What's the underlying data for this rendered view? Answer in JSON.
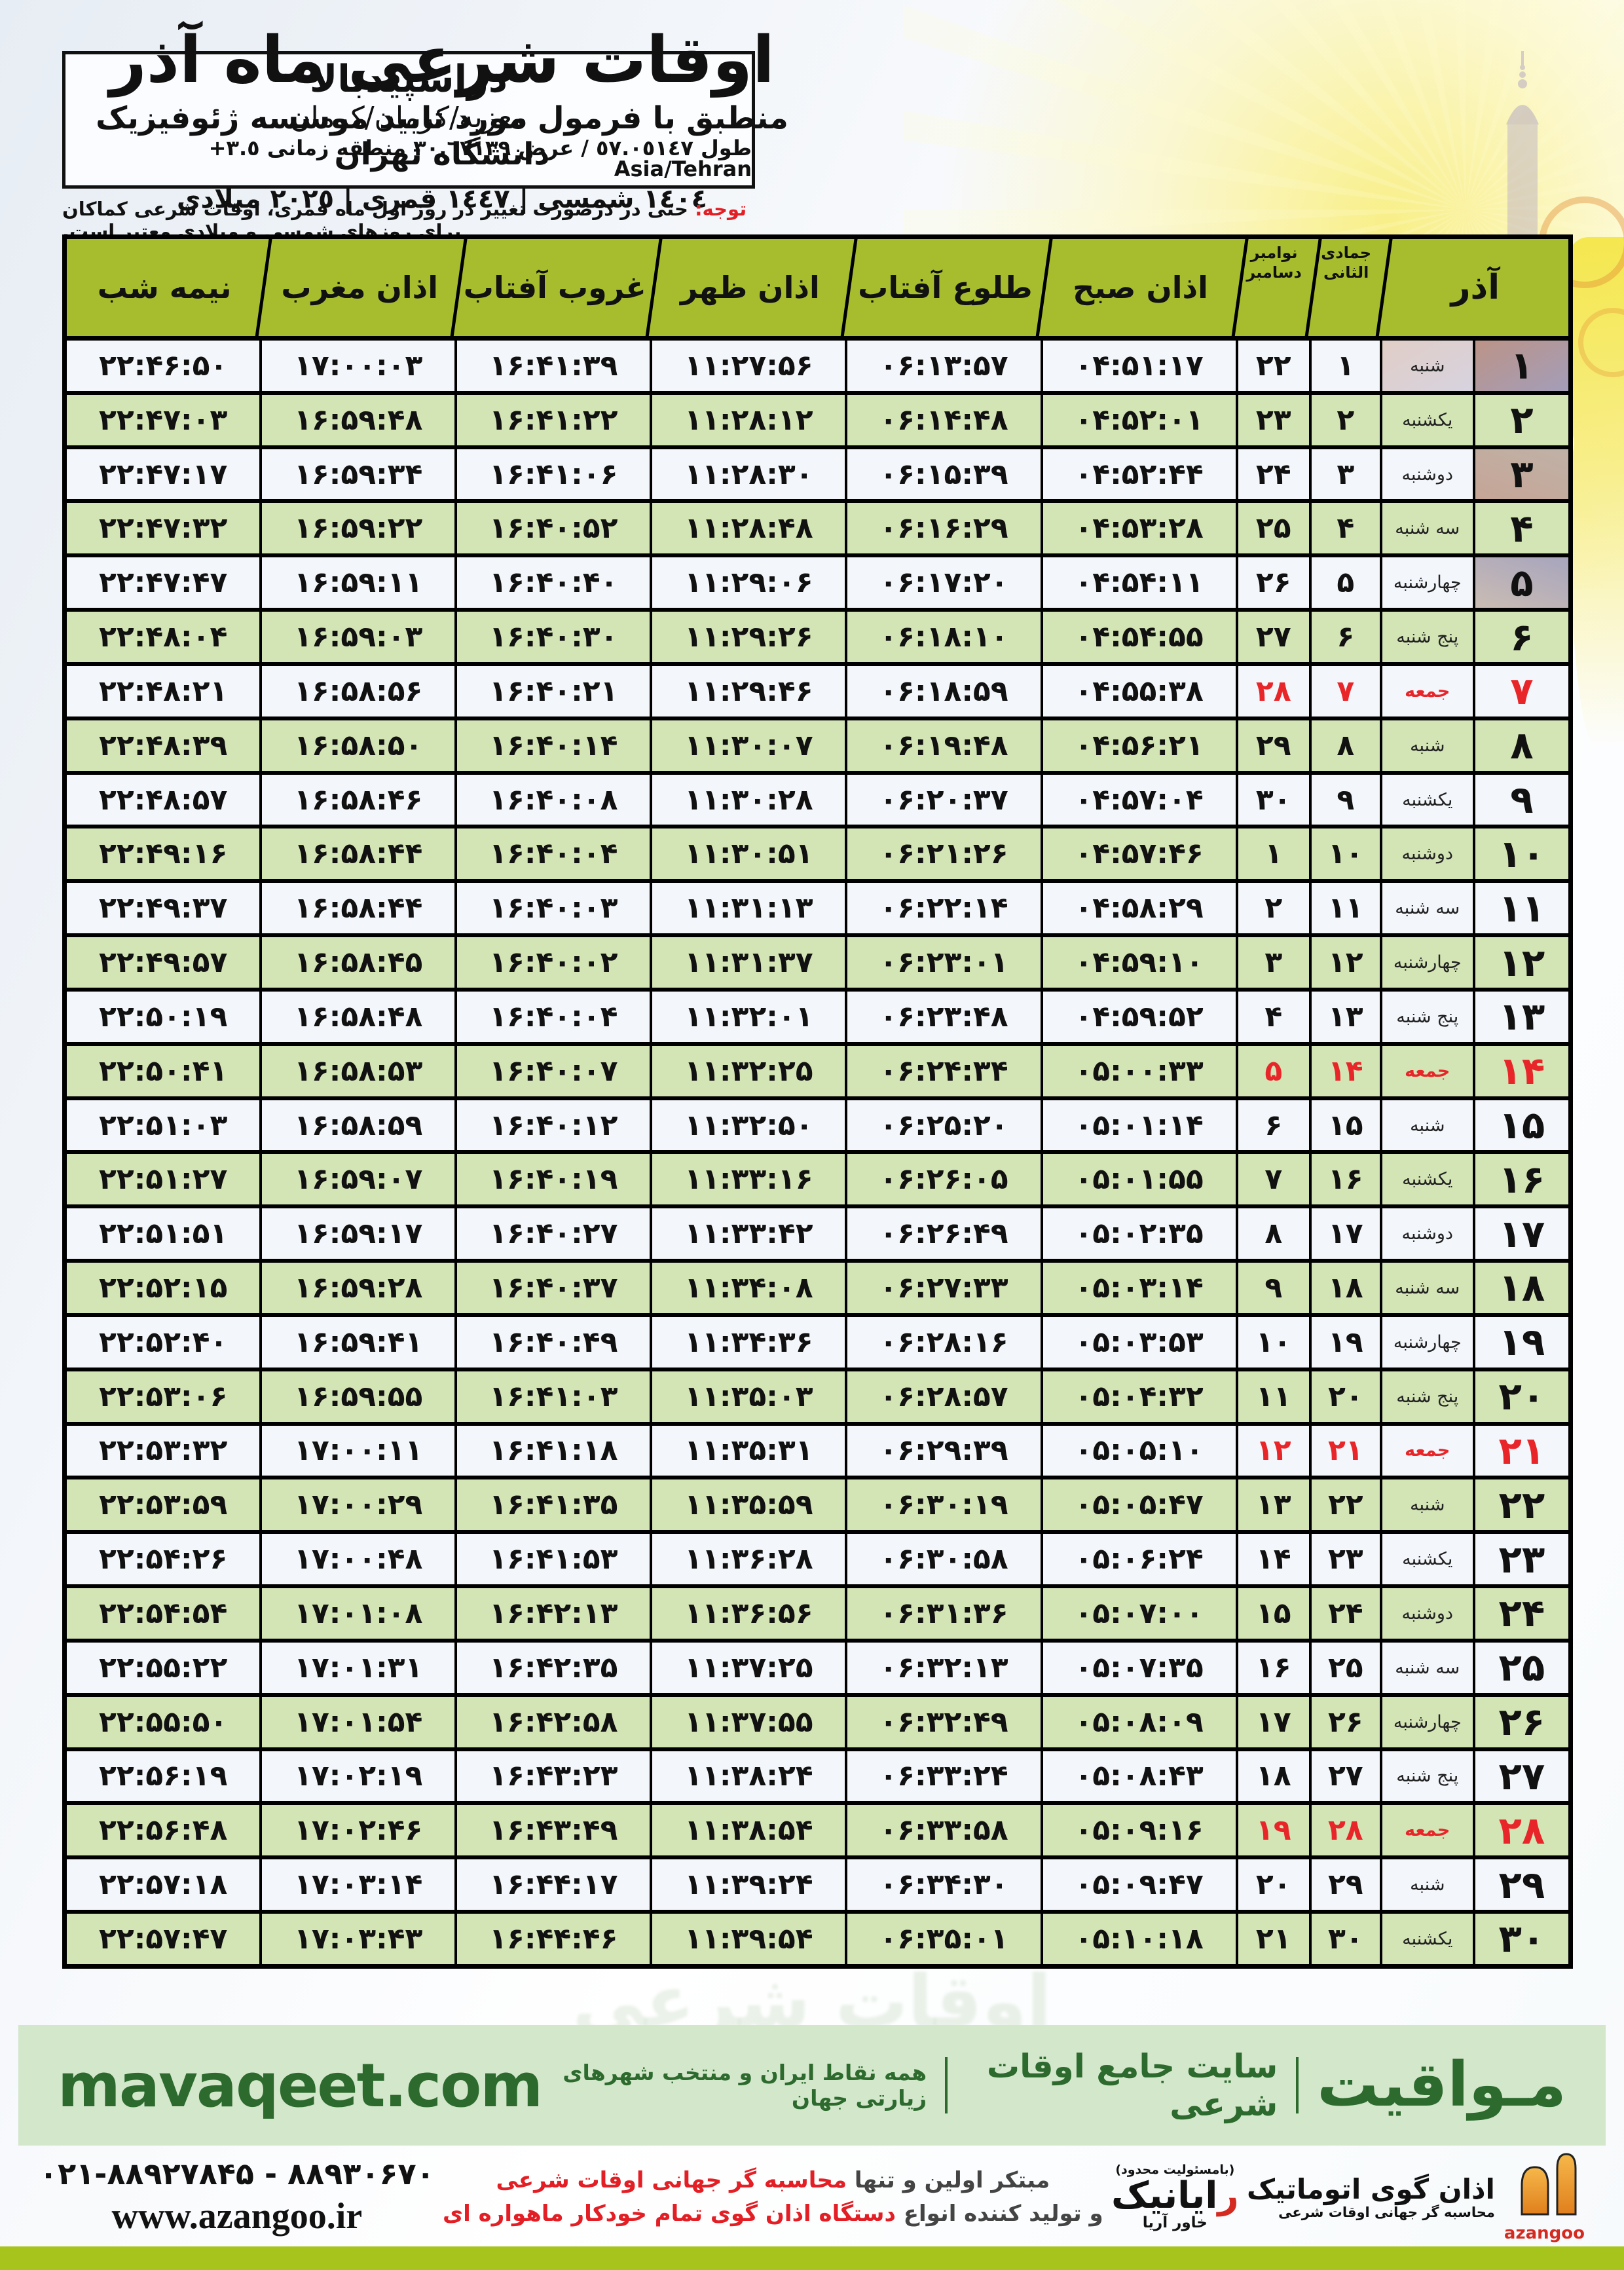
{
  "colors": {
    "header_green": "#a7bd2e",
    "row_green": "#d3e4b5",
    "row_white": "#f3f6fb",
    "friday_red": "#e8262a",
    "note_red": "#e31e24",
    "mavaqeet_green": "#2d6a2e",
    "footer_bar_green": "#d3e7cb",
    "lime_bar": "#a6c41c"
  },
  "header": {
    "title": "اوقات شرعی ماه آذر",
    "subtitle": "منطبق با فرمول مورد تایید موسسه ژئوفیزیک دانشگاه تهران",
    "dates": "١٤٠٤ شمسی | ١٤٤٧ قمری | ٢٠٢٥ میلادی"
  },
  "location": {
    "name": "دراسپیدبالا",
    "region": "معزیه/کرمان/کرمان",
    "coords": "طول ٥٧.٠٥١٤٧ / عرض ٣٠.٦٧١٣٩ منطقه زمانی ٣.٥+",
    "timezone": "Asia/Tehran"
  },
  "note": {
    "label": "توجه:",
    "text": " حتی در درصورت تغییر در روز اول ماه قمری، اوقات شرعی کماکان برای روزهای شمسی و میلادی معتبر است."
  },
  "table": {
    "headers": {
      "azar": "آذر",
      "jumada": "جمادی الثانی",
      "november": "نوامبر",
      "december": "دسامبر",
      "fajr": "اذان صبح",
      "sunrise": "طلوع آفتاب",
      "noon": "اذان ظهر",
      "sunset": "غروب آفتاب",
      "maghrib": "اذان مغرب",
      "midnight": "نیمه شب"
    },
    "row_order_rtl": [
      "azar_day",
      "weekday",
      "jumada_day",
      "gregorian_day",
      "fajr",
      "sunrise",
      "noon",
      "sunset",
      "maghrib",
      "midnight",
      "is_friday"
    ],
    "rows": [
      [
        1,
        "شنبه",
        1,
        22,
        "04:51:17",
        "06:13:57",
        "11:27:56",
        "16:41:39",
        "17:00:03",
        "22:46:50",
        0
      ],
      [
        2,
        "یکشنبه",
        2,
        23,
        "04:52:01",
        "06:14:48",
        "11:28:12",
        "16:41:22",
        "16:59:48",
        "22:47:03",
        0
      ],
      [
        3,
        "دوشنبه",
        3,
        24,
        "04:52:44",
        "06:15:39",
        "11:28:30",
        "16:41:06",
        "16:59:34",
        "22:47:17",
        0
      ],
      [
        4,
        "سه شنبه",
        4,
        25,
        "04:53:28",
        "06:16:29",
        "11:28:48",
        "16:40:52",
        "16:59:22",
        "22:47:32",
        0
      ],
      [
        5,
        "چهارشنبه",
        5,
        26,
        "04:54:11",
        "06:17:20",
        "11:29:06",
        "16:40:40",
        "16:59:11",
        "22:47:47",
        0
      ],
      [
        6,
        "پنج شنبه",
        6,
        27,
        "04:54:55",
        "06:18:10",
        "11:29:26",
        "16:40:30",
        "16:59:03",
        "22:48:04",
        0
      ],
      [
        7,
        "جمعه",
        7,
        28,
        "04:55:38",
        "06:18:59",
        "11:29:46",
        "16:40:21",
        "16:58:56",
        "22:48:21",
        1
      ],
      [
        8,
        "شنبه",
        8,
        29,
        "04:56:21",
        "06:19:48",
        "11:30:07",
        "16:40:14",
        "16:58:50",
        "22:48:39",
        0
      ],
      [
        9,
        "یکشنبه",
        9,
        30,
        "04:57:04",
        "06:20:37",
        "11:30:28",
        "16:40:08",
        "16:58:46",
        "22:48:57",
        0
      ],
      [
        10,
        "دوشنبه",
        10,
        1,
        "04:57:46",
        "06:21:26",
        "11:30:51",
        "16:40:04",
        "16:58:44",
        "22:49:16",
        0
      ],
      [
        11,
        "سه شنبه",
        11,
        2,
        "04:58:29",
        "06:22:14",
        "11:31:13",
        "16:40:03",
        "16:58:44",
        "22:49:37",
        0
      ],
      [
        12,
        "چهارشنبه",
        12,
        3,
        "04:59:10",
        "06:23:01",
        "11:31:37",
        "16:40:02",
        "16:58:45",
        "22:49:57",
        0
      ],
      [
        13,
        "پنج شنبه",
        13,
        4,
        "04:59:52",
        "06:23:48",
        "11:32:01",
        "16:40:04",
        "16:58:48",
        "22:50:19",
        0
      ],
      [
        14,
        "جمعه",
        14,
        5,
        "05:00:33",
        "06:24:34",
        "11:32:25",
        "16:40:07",
        "16:58:53",
        "22:50:41",
        1
      ],
      [
        15,
        "شنبه",
        15,
        6,
        "05:01:14",
        "06:25:20",
        "11:32:50",
        "16:40:12",
        "16:58:59",
        "22:51:03",
        0
      ],
      [
        16,
        "یکشنبه",
        16,
        7,
        "05:01:55",
        "06:26:05",
        "11:33:16",
        "16:40:19",
        "16:59:07",
        "22:51:27",
        0
      ],
      [
        17,
        "دوشنبه",
        17,
        8,
        "05:02:35",
        "06:26:49",
        "11:33:42",
        "16:40:27",
        "16:59:17",
        "22:51:51",
        0
      ],
      [
        18,
        "سه شنبه",
        18,
        9,
        "05:03:14",
        "06:27:33",
        "11:34:08",
        "16:40:37",
        "16:59:28",
        "22:52:15",
        0
      ],
      [
        19,
        "چهارشنبه",
        19,
        10,
        "05:03:53",
        "06:28:16",
        "11:34:36",
        "16:40:49",
        "16:59:41",
        "22:52:40",
        0
      ],
      [
        20,
        "پنج شنبه",
        20,
        11,
        "05:04:32",
        "06:28:57",
        "11:35:03",
        "16:41:03",
        "16:59:55",
        "22:53:06",
        0
      ],
      [
        21,
        "جمعه",
        21,
        12,
        "05:05:10",
        "06:29:39",
        "11:35:31",
        "16:41:18",
        "17:00:11",
        "22:53:32",
        1
      ],
      [
        22,
        "شنبه",
        22,
        13,
        "05:05:47",
        "06:30:19",
        "11:35:59",
        "16:41:35",
        "17:00:29",
        "22:53:59",
        0
      ],
      [
        23,
        "یکشنبه",
        23,
        14,
        "05:06:24",
        "06:30:58",
        "11:36:28",
        "16:41:53",
        "17:00:48",
        "22:54:26",
        0
      ],
      [
        24,
        "دوشنبه",
        24,
        15,
        "05:07:00",
        "06:31:36",
        "11:36:56",
        "16:42:13",
        "17:01:08",
        "22:54:54",
        0
      ],
      [
        25,
        "سه شنبه",
        25,
        16,
        "05:07:35",
        "06:32:13",
        "11:37:25",
        "16:42:35",
        "17:01:31",
        "22:55:22",
        0
      ],
      [
        26,
        "چهارشنبه",
        26,
        17,
        "05:08:09",
        "06:32:49",
        "11:37:55",
        "16:42:58",
        "17:01:54",
        "22:55:50",
        0
      ],
      [
        27,
        "پنج شنبه",
        27,
        18,
        "05:08:43",
        "06:33:24",
        "11:38:24",
        "16:43:23",
        "17:02:19",
        "22:56:19",
        0
      ],
      [
        28,
        "جمعه",
        28,
        19,
        "05:09:16",
        "06:33:58",
        "11:38:54",
        "16:43:49",
        "17:02:46",
        "22:56:48",
        1
      ],
      [
        29,
        "شنبه",
        29,
        20,
        "05:09:47",
        "06:34:30",
        "11:39:24",
        "16:44:17",
        "17:03:14",
        "22:57:18",
        0
      ],
      [
        30,
        "یکشنبه",
        30,
        21,
        "05:10:18",
        "06:35:01",
        "11:39:54",
        "16:44:46",
        "17:03:43",
        "22:57:47",
        0
      ]
    ]
  },
  "mavaqeet_bar": {
    "brand": "مـواقیت",
    "site_label": "سایت جامع اوقات شرعی",
    "description": "همه نقاط ایران و منتخب شهرهای زیارتی جهان",
    "domain": "mavaqeet.com"
  },
  "bottom": {
    "azangoo": {
      "line1": "اذان گوی اتوماتیک",
      "line2": "محاسبه گر جهانی اوقات شرعی",
      "latin": "azangoo"
    },
    "rayanik": {
      "small": "(بامسئولیت محدود)",
      "main_first": "ر",
      "main_rest": "ایانیک",
      "side": "خاور آریا"
    },
    "promo": {
      "gray1": "مبتکر اولین و تنها ",
      "red1": "محاسبه گر جهانی اوقات شرعی",
      "gray2": "و تولید کننده انواع ",
      "red2": "دستگاه اذان گوی تمام خودکار ماهواره ای"
    },
    "contact": {
      "phone": "۰۲۱-۸۸۹۲۷۸۴۵ - ۸۸۹۳۰۶۷۰",
      "website": "www.azangoo.ir"
    }
  }
}
